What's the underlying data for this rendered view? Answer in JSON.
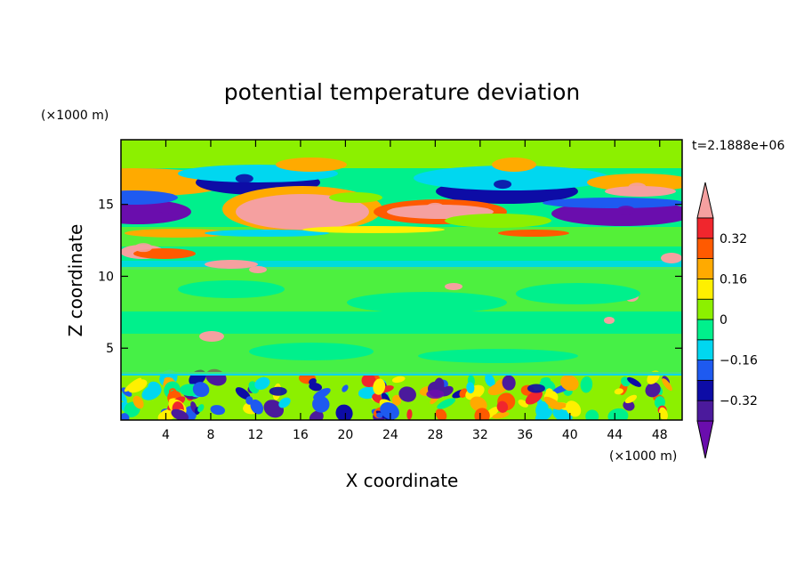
{
  "chart_data": {
    "type": "heatmap",
    "title": "potential temperature deviation",
    "time_label": "t=2.1888e+06",
    "xlabel": "X coordinate",
    "ylabel": "Z coordinate",
    "x_unit": "(×1000 m)",
    "y_unit": "(×1000 m)",
    "xlim": [
      0,
      50
    ],
    "ylim": [
      0,
      19.5
    ],
    "x_ticks": [
      4,
      8,
      12,
      16,
      20,
      24,
      28,
      32,
      36,
      40,
      44,
      48
    ],
    "y_ticks": [
      5,
      10,
      15
    ],
    "colorbar": {
      "levels": [
        -0.4,
        -0.32,
        -0.24,
        -0.16,
        -0.08,
        0,
        0.08,
        0.16,
        0.24,
        0.32,
        0.4
      ],
      "labeled_levels": [
        "0.32",
        "0.16",
        "0",
        "−0.16",
        "−0.32"
      ],
      "labeled_values": [
        0.32,
        0.16,
        0,
        -0.16,
        -0.32
      ],
      "colors": [
        "#6a0dad",
        "#4b1a9c",
        "#0d0ca6",
        "#1e5af0",
        "#00d7f0",
        "#00f08c",
        "#8cf000",
        "#fff000",
        "#ffaa00",
        "#ff5a00",
        "#f0262d",
        "#f5a0a0"
      ],
      "extend": "both"
    },
    "features": [
      {
        "x": 4,
        "z": 14.7,
        "value": -0.45
      },
      {
        "x": 11,
        "z": 16.8,
        "value": -0.3
      },
      {
        "x": 18,
        "z": 15.2,
        "value": 0.45
      },
      {
        "x": 28,
        "z": 14.8,
        "value": 0.45
      },
      {
        "x": 34,
        "z": 16.4,
        "value": -0.3
      },
      {
        "x": 45,
        "z": 14.6,
        "value": -0.45
      },
      {
        "x": 46,
        "z": 16.2,
        "value": 0.45
      },
      {
        "x": 2,
        "z": 12,
        "value": 0.45
      },
      {
        "x": 14,
        "z": 2,
        "value": -0.3
      },
      {
        "x": 28,
        "z": 1.8,
        "value": -0.45
      },
      {
        "x": 37,
        "z": 2.2,
        "value": -0.3
      }
    ]
  }
}
